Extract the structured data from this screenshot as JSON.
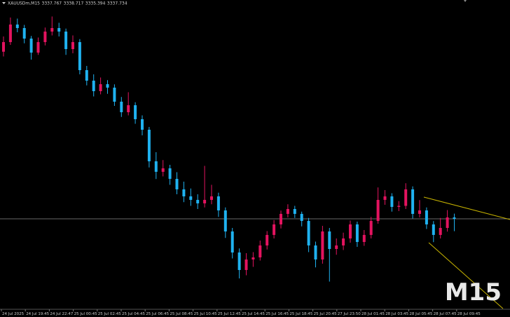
{
  "chart_data": {
    "type": "candlestick",
    "header": {
      "symbol": "XAUUSDm,M15",
      "open": 3337.767,
      "high": 3338.717,
      "low": 3335.394,
      "close": 3337.734
    },
    "watermark": "M15",
    "up_color": "#e4135f",
    "down_color": "#1fb2f0",
    "ylim": [
      3320,
      3378
    ],
    "x_labels": [
      "24 Jul 2025",
      "24 Jul 19:45",
      "24 Jul 22:47",
      "25 Jul 00:45",
      "25 Jul 02:45",
      "25 Jul 04:45",
      "25 Jul 06:45",
      "25 Jul 08:45",
      "25 Jul 10:45",
      "25 Jul 12:45",
      "25 Jul 14:45",
      "25 Jul 16:45",
      "25 Jul 18:45",
      "25 Jul 20:45",
      "27 Jul 23:50",
      "28 Jul 01:45",
      "28 Jul 03:45",
      "28 Jul 05:45",
      "28 Jul 07:45",
      "28 Jul 09:45"
    ],
    "open": [
      3369.5,
      3371.33,
      3374.67,
      3374.0,
      3372.0,
      3369.33,
      3371.33,
      3373.33,
      3374.0,
      3373.33,
      3370.0,
      3371.33,
      3366.0,
      3364.0,
      3362.0,
      3363.33,
      3362.67,
      3360.0,
      3358.0,
      3359.33,
      3356.67,
      3354.67,
      3348.67,
      3346.67,
      3347.33,
      3345.33,
      3343.33,
      3342.0,
      3341.33,
      3340.67,
      3341.33,
      3342.0,
      3339.33,
      3335.33,
      3331.33,
      3328.0,
      3330.0,
      3330.4,
      3332.67,
      3334.67,
      3336.67,
      3338.67,
      3339.6,
      3338.67,
      3337.33,
      3332.67,
      3330.0,
      3335.33,
      3332.0,
      3332.67,
      3334.0,
      3336.67,
      3333.33,
      3334.67,
      3337.33,
      3341.33,
      3342.0,
      3340.0,
      3340.2,
      3343.33,
      3338.67,
      3339.33,
      3336.67,
      3334.67,
      3336.0,
      3338.0
    ],
    "high": [
      3372.4,
      3376.0,
      3375.8,
      3374.6,
      3372.5,
      3372.2,
      3374.1,
      3376.2,
      3375.0,
      3373.9,
      3372.6,
      3371.9,
      3366.8,
      3365.2,
      3364.6,
      3364.1,
      3363.3,
      3360.9,
      3361.8,
      3359.9,
      3357.4,
      3355.2,
      3350.4,
      3348.9,
      3348.0,
      3346.6,
      3344.8,
      3343.5,
      3342.4,
      3347.8,
      3344.2,
      3342.7,
      3339.9,
      3336.0,
      3332.1,
      3331.2,
      3331.4,
      3333.6,
      3335.4,
      3337.5,
      3339.3,
      3340.5,
      3340.2,
      3339.1,
      3337.9,
      3333.4,
      3336.4,
      3336.0,
      3334.0,
      3335.1,
      3337.4,
      3337.2,
      3335.6,
      3338.1,
      3343.7,
      3343.2,
      3342.6,
      3341.1,
      3344.5,
      3343.9,
      3341.3,
      3339.9,
      3337.3,
      3337.9,
      3339.4,
      3338.72
    ],
    "low": [
      3368.6,
      3370.8,
      3373.2,
      3371.1,
      3368.0,
      3368.9,
      3370.7,
      3372.6,
      3372.4,
      3368.9,
      3369.2,
      3365.2,
      3363.1,
      3361.0,
      3361.4,
      3361.5,
      3359.2,
      3357.1,
      3357.4,
      3355.8,
      3353.6,
      3347.5,
      3345.3,
      3345.8,
      3344.2,
      3342.4,
      3340.9,
      3340.2,
      3339.6,
      3339.9,
      3340.5,
      3338.1,
      3334.1,
      3330.2,
      3326.4,
      3327.0,
      3328.6,
      3329.8,
      3331.9,
      3334.0,
      3335.9,
      3338.0,
      3337.9,
      3336.3,
      3331.4,
      3328.5,
      3329.2,
      3325.8,
      3330.9,
      3331.8,
      3333.2,
      3332.4,
      3332.6,
      3334.0,
      3336.8,
      3340.4,
      3339.1,
      3339.2,
      3339.6,
      3337.8,
      3338.0,
      3335.8,
      3333.3,
      3334.0,
      3335.3,
      3335.39
    ],
    "close": [
      3371.33,
      3374.67,
      3374.0,
      3372.0,
      3369.33,
      3371.33,
      3373.33,
      3374.0,
      3373.33,
      3370.0,
      3371.33,
      3366.0,
      3364.0,
      3362.0,
      3363.33,
      3362.67,
      3360.0,
      3358.0,
      3359.33,
      3356.67,
      3354.67,
      3348.67,
      3346.67,
      3347.33,
      3345.33,
      3343.33,
      3342.0,
      3341.33,
      3340.67,
      3341.33,
      3342.0,
      3339.33,
      3335.33,
      3331.33,
      3328.0,
      3330.0,
      3330.4,
      3332.67,
      3334.67,
      3336.67,
      3338.67,
      3339.6,
      3338.67,
      3337.33,
      3332.67,
      3330.0,
      3335.33,
      3332.0,
      3332.67,
      3334.0,
      3336.67,
      3333.33,
      3334.67,
      3337.33,
      3341.33,
      3342.0,
      3340.0,
      3340.2,
      3343.33,
      3338.67,
      3339.33,
      3336.67,
      3334.67,
      3336.0,
      3338.0,
      3337.73
    ]
  }
}
